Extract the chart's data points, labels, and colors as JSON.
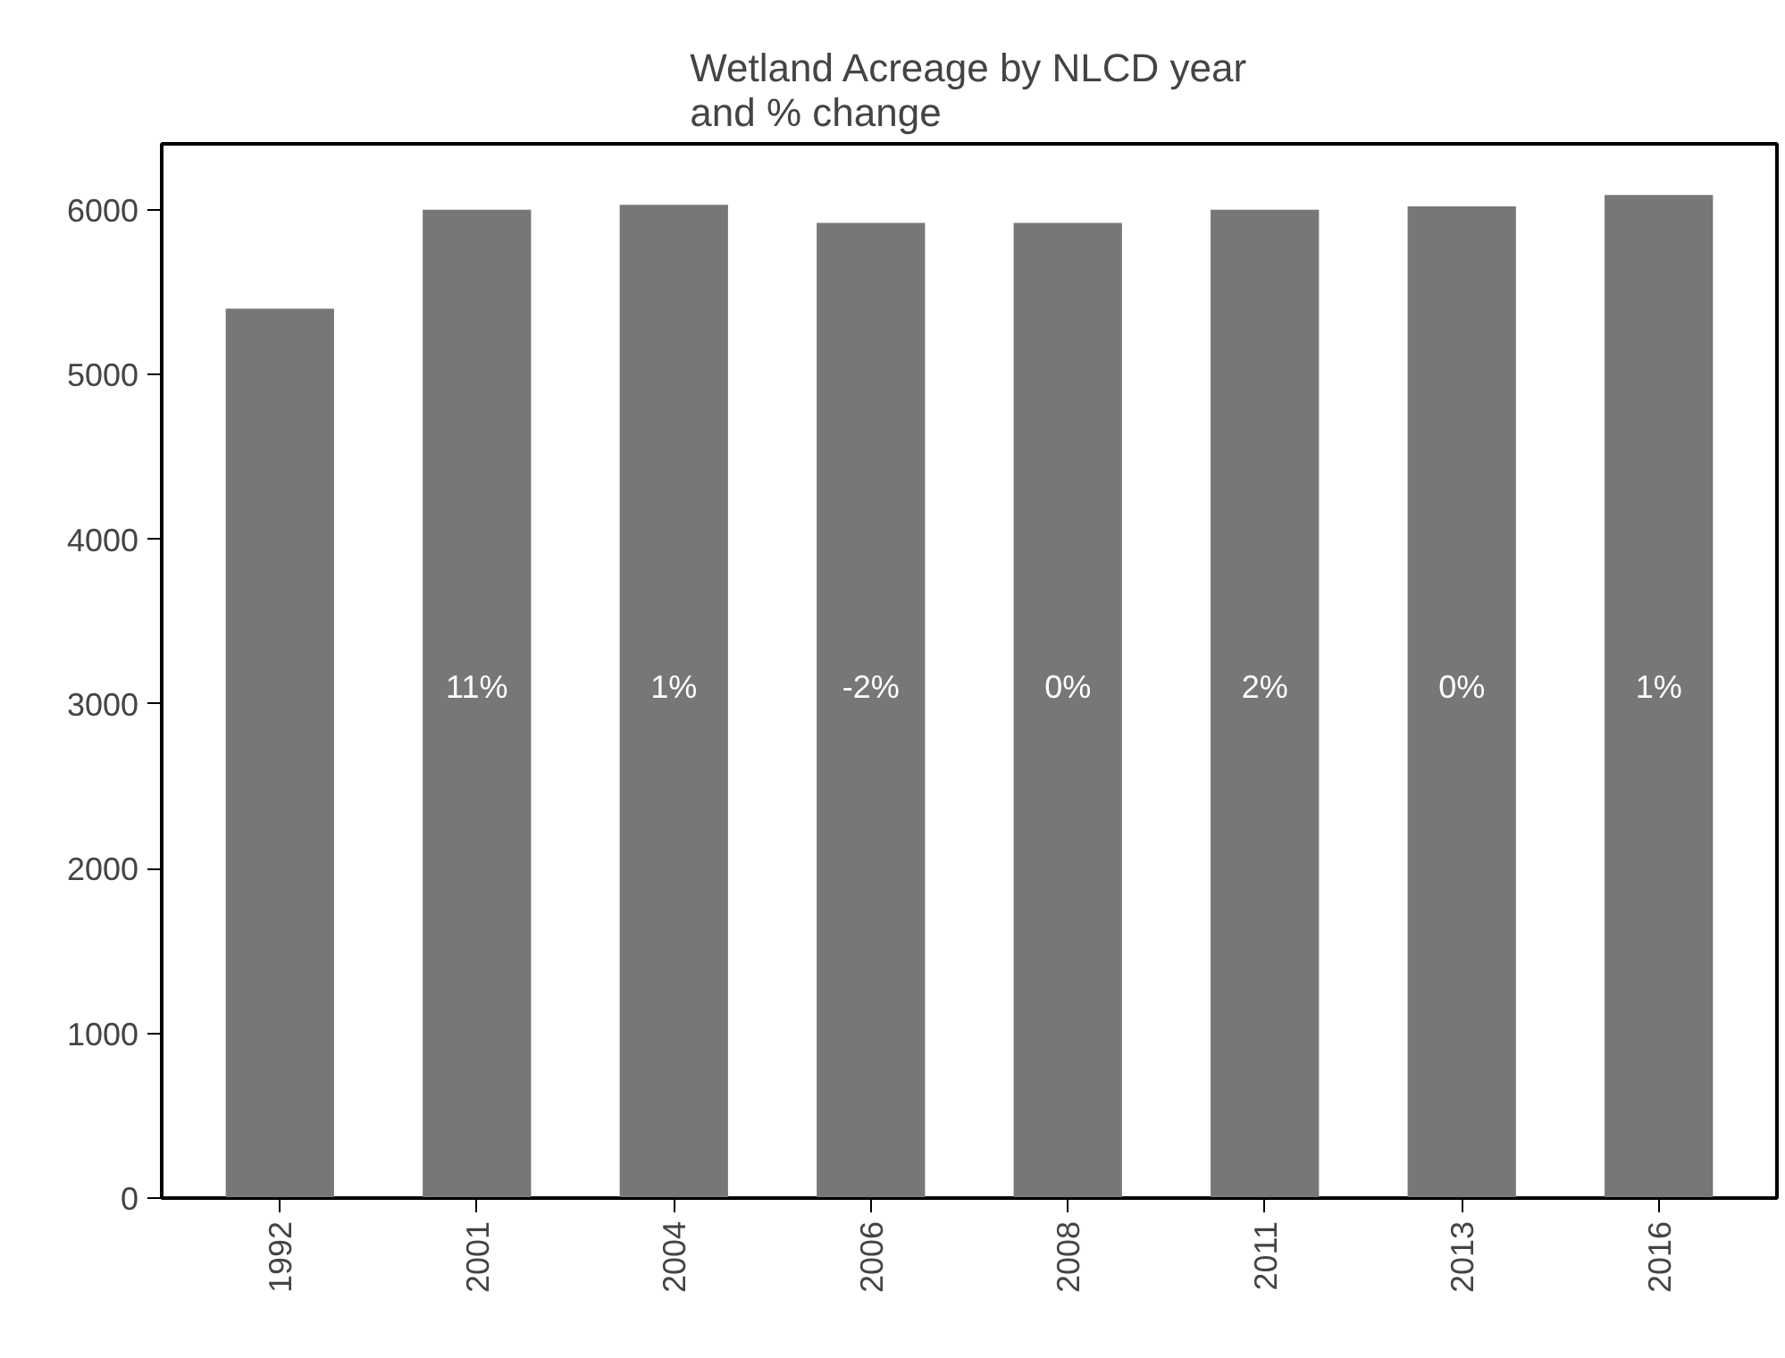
{
  "chart_data": {
    "type": "bar",
    "title": "Wetland Acreage by NLCD year\nand % change",
    "categories": [
      "1992",
      "2001",
      "2004",
      "2006",
      "2008",
      "2011",
      "2013",
      "2016"
    ],
    "values": [
      5400,
      6000,
      6030,
      5920,
      5920,
      6000,
      6020,
      6090
    ],
    "annotations": [
      "11%",
      "1%",
      "-2%",
      "0%",
      "2%",
      "0%",
      "1%"
    ],
    "color": "#777777",
    "ylim": [
      0,
      6400
    ],
    "yticks": [
      0,
      1000,
      2000,
      3000,
      4000,
      5000,
      6000
    ],
    "grid": false
  }
}
